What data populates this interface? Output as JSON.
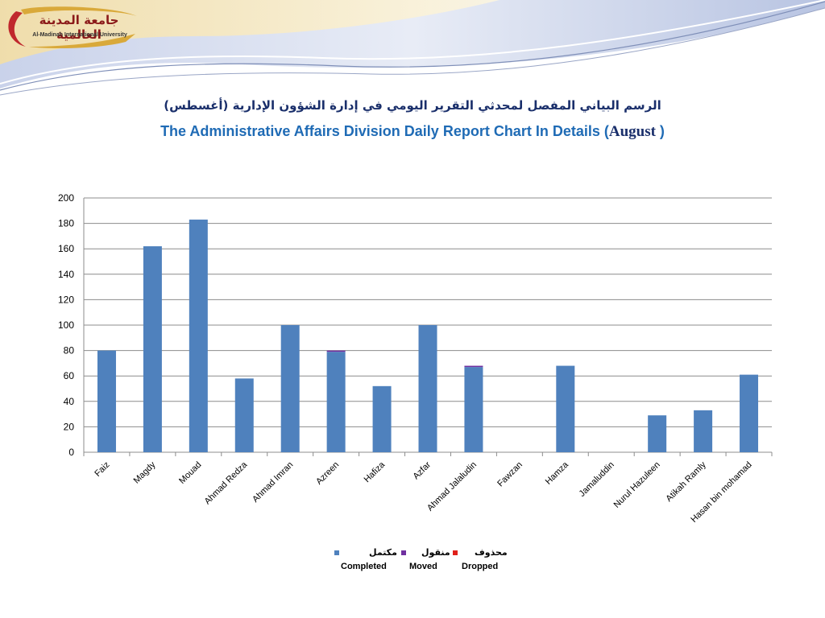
{
  "logo": {
    "arabic": "جامعة المدينة العالمية",
    "latin": "Al-Madinah International University"
  },
  "title_ar": "الرسم البياني المفصل لمحدثي التقرير اليومي في إدارة الشؤون الإدارية (أغسطس)",
  "title_en": "The Administrative Affairs Division Daily Report Chart In Details (",
  "title_month": "August",
  "title_close": " )",
  "colors": {
    "completed": "#4f81bd",
    "moved": "#7030a0",
    "dropped": "#e0201a",
    "gridline": "#8c8c8c"
  },
  "legend": {
    "completed_ar": "مكتمل",
    "moved_ar": "منقول",
    "dropped_ar": "محذوف",
    "completed_en": "Completed",
    "moved_en": "Moved",
    "dropped_en": "Dropped"
  },
  "chart_data": {
    "type": "bar",
    "stacked": true,
    "categories": [
      "Faiz",
      "Magdy",
      "Mouad",
      "Ahmad Redza",
      "Ahmad Imran",
      "Azreen",
      "Hafiza",
      "Azfar",
      "Ahmad Jalaludin",
      "Fawzan",
      "Hamza",
      "Jamaluddin",
      "Nurul Hazuleen",
      "Atikah Ramly",
      "Hasan bin mohamad"
    ],
    "series": [
      {
        "name": "Completed",
        "color": "#4f81bd",
        "values": [
          80,
          162,
          183,
          58,
          100,
          79,
          52,
          100,
          67,
          0,
          68,
          0,
          29,
          33,
          61
        ]
      },
      {
        "name": "Moved",
        "color": "#7030a0",
        "values": [
          0,
          0,
          0,
          0,
          0,
          1,
          0,
          0,
          1,
          0,
          0,
          0,
          0,
          0,
          0
        ]
      },
      {
        "name": "Dropped",
        "color": "#e0201a",
        "values": [
          0,
          0,
          0,
          0,
          0,
          0,
          0,
          0,
          0,
          0,
          0,
          0,
          0,
          0,
          0
        ]
      }
    ],
    "ylim": [
      0,
      200
    ],
    "yticks": [
      0,
      20,
      40,
      60,
      80,
      100,
      120,
      140,
      160,
      180,
      200
    ],
    "grid": true,
    "legend_position": "bottom"
  }
}
